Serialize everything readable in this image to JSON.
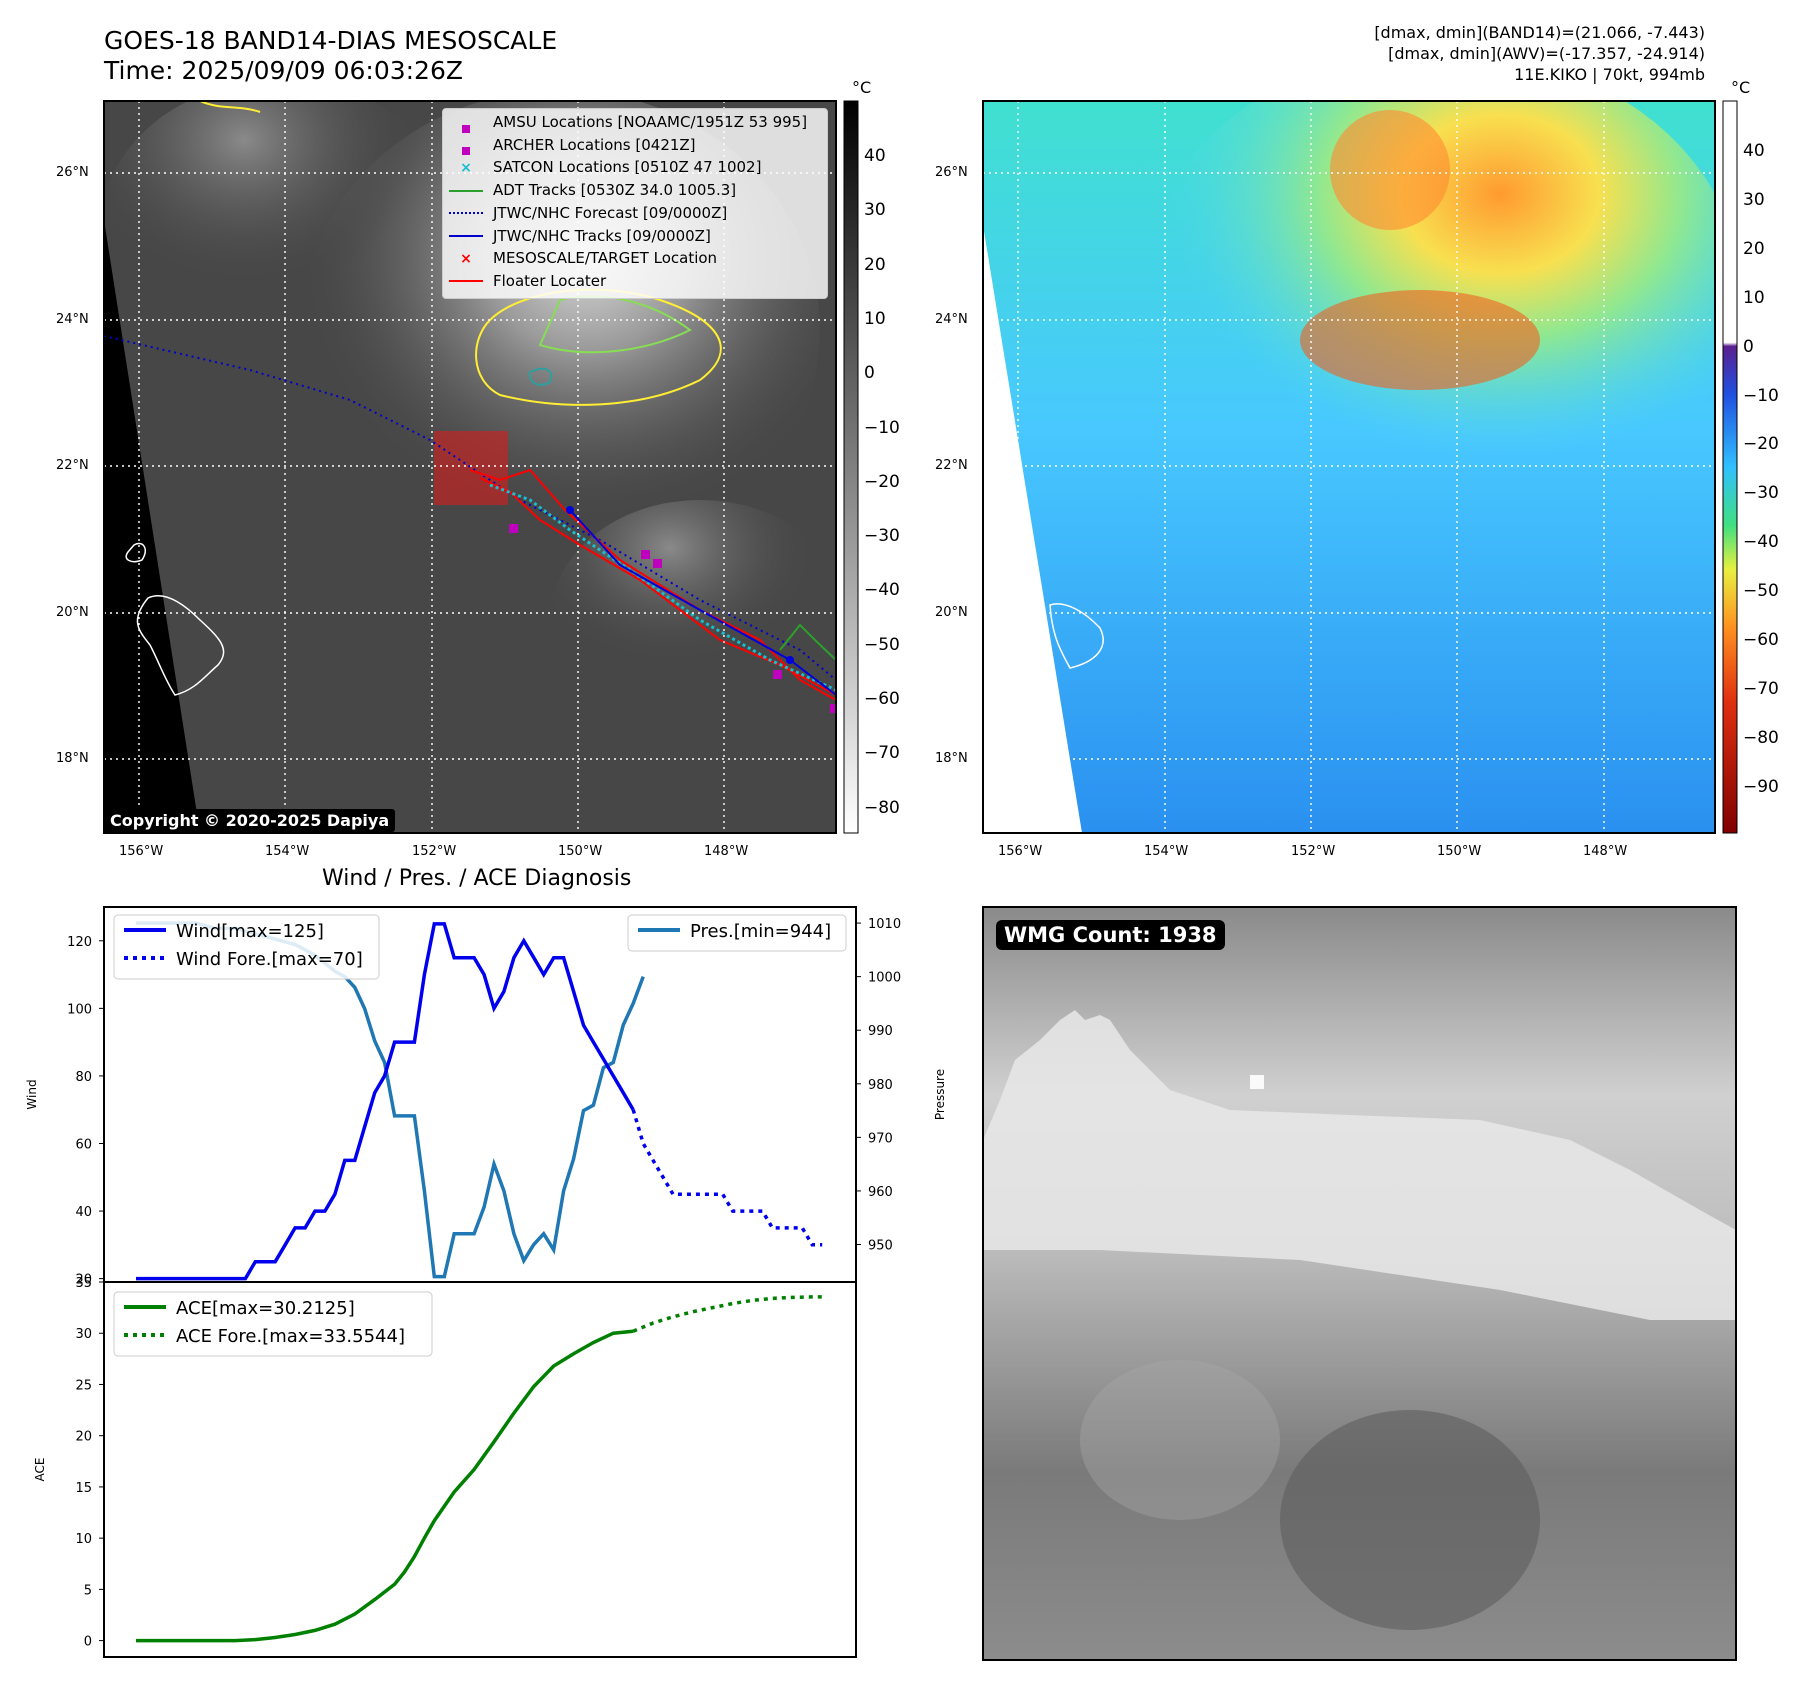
{
  "header": {
    "title_line1": "GOES-18 BAND14-DIAS MESOSCALE",
    "title_line2": "Time: 2025/09/09 06:03:26Z",
    "info_line1": "[dmax, dmin](BAND14)=(21.066, -7.443)",
    "info_line2": "[dmax, dmin](AWV)=(-17.357, -24.914)",
    "info_line3": "11E.KIKO | 70kt, 994mb"
  },
  "colors": {
    "wind": "#0000ee",
    "pressure": "#1f77b4",
    "ace": "#008000",
    "forecast_track": "#0000cc",
    "floater": "#ff0000",
    "adt": "#2ca02c",
    "satcon": "#17becf",
    "amsu": "#bf00bf",
    "cloud_contour": "#ffee33"
  },
  "map_ir": {
    "colorbar_unit": "°C",
    "colorbar_ticks": [
      "40",
      "30",
      "20",
      "10",
      "0",
      "−10",
      "−20",
      "−30",
      "−40",
      "−50",
      "−60",
      "−70",
      "−80"
    ],
    "lat_labels": [
      "26°N",
      "24°N",
      "22°N",
      "20°N",
      "18°N"
    ],
    "lon_labels": [
      "156°W",
      "154°W",
      "152°W",
      "150°W",
      "148°W"
    ],
    "copyright": "Copyright © 2020-2025 Dapiya",
    "legend": [
      {
        "label": "AMSU Locations [NOAAMC/1951Z 53 995]",
        "marker": "square",
        "color": "#bf00bf"
      },
      {
        "label": "ARCHER Locations [0421Z]",
        "marker": "square",
        "color": "#bf00bf"
      },
      {
        "label": "SATCON Locations [0510Z 47 1002]",
        "marker": "x",
        "color": "#17becf"
      },
      {
        "label": "ADT Tracks [0530Z 34.0 1005.3]",
        "marker": "line",
        "color": "#2ca02c"
      },
      {
        "label": "JTWC/NHC Forecast [09/0000Z]",
        "marker": "dotted",
        "color": "#0000cc"
      },
      {
        "label": "JTWC/NHC Tracks [09/0000Z]",
        "marker": "line-dot",
        "color": "#0000cc"
      },
      {
        "label": "MESOSCALE/TARGET Location",
        "marker": "x",
        "color": "#ff0000"
      },
      {
        "label": "Floater Locater",
        "marker": "line",
        "color": "#ff0000"
      }
    ]
  },
  "map_wv": {
    "colorbar_unit": "°C",
    "colorbar_ticks": [
      "40",
      "30",
      "20",
      "10",
      "0",
      "−10",
      "−20",
      "−30",
      "−40",
      "−50",
      "−60",
      "−70",
      "−80",
      "−90"
    ],
    "lat_labels": [
      "26°N",
      "24°N",
      "22°N",
      "20°N",
      "18°N"
    ],
    "lon_labels": [
      "156°W",
      "154°W",
      "152°W",
      "150°W",
      "148°W"
    ]
  },
  "zoom_panel": {
    "badge": "WMG Count: 1938"
  },
  "chart_data": [
    {
      "type": "line",
      "title": "Wind / Pres. / ACE Diagnosis",
      "ylabel": "Wind",
      "y2label": "Pressure",
      "ylim": [
        19,
        130
      ],
      "y2lim": [
        943,
        1013
      ],
      "yticks": [
        "20",
        "40",
        "60",
        "80",
        "100",
        "120"
      ],
      "y2ticks": [
        "950",
        "960",
        "970",
        "980",
        "990",
        "1000",
        "1010"
      ],
      "legend_left": [
        "Wind[max=125]",
        "Wind Fore.[max=70]"
      ],
      "legend_right": [
        "Pres.[min=944]"
      ],
      "series": [
        {
          "name": "Wind[max=125]",
          "axis": "left",
          "style": "solid",
          "x": [
            0,
            1,
            2,
            3,
            4,
            5,
            6,
            7,
            8,
            9,
            10,
            11,
            12,
            13,
            14,
            15,
            16,
            17,
            18,
            19,
            20,
            21,
            22,
            23,
            24,
            25,
            26,
            27,
            28,
            29,
            30,
            31,
            32,
            33,
            34,
            35,
            36,
            37,
            38,
            39,
            40,
            41,
            42,
            43,
            44,
            45,
            46,
            47,
            48,
            49,
            50,
            51,
            52,
            53,
            54,
            55,
            56
          ],
          "values": [
            20,
            20,
            20,
            20,
            20,
            20,
            20,
            20,
            20,
            20,
            20,
            20,
            25,
            25,
            25,
            30,
            35,
            35,
            40,
            40,
            45,
            55,
            55,
            65,
            75,
            80,
            90,
            90,
            90,
            110,
            125,
            125,
            115,
            115,
            115,
            110,
            100,
            105,
            115,
            120,
            115,
            110,
            115,
            115,
            105,
            95,
            90,
            85,
            80,
            75,
            70,
            null,
            null,
            null,
            null,
            null,
            null
          ]
        },
        {
          "name": "Wind Fore.[max=70]",
          "axis": "left",
          "style": "dotted",
          "x": [
            50,
            51,
            52,
            53,
            54,
            55,
            56,
            57,
            58,
            59,
            60,
            61,
            62,
            63,
            64,
            65,
            66,
            67,
            68,
            69
          ],
          "values": [
            70,
            60,
            55,
            50,
            45,
            45,
            45,
            45,
            45,
            45,
            40,
            40,
            40,
            40,
            35,
            35,
            35,
            35,
            30,
            30
          ]
        },
        {
          "name": "Pres.[min=944]",
          "axis": "right",
          "style": "solid",
          "x": [
            0,
            2,
            4,
            6,
            8,
            10,
            12,
            14,
            16,
            18,
            20,
            21,
            22,
            23,
            24,
            25,
            26,
            27,
            28,
            29,
            30,
            31,
            32,
            33,
            34,
            35,
            36,
            37,
            38,
            39,
            40,
            41,
            42,
            43,
            44,
            45,
            46,
            47,
            48,
            49,
            50,
            51
          ],
          "values": [
            1010,
            1010,
            1010,
            1010,
            1009,
            1009,
            1008,
            1007,
            1006,
            1004,
            1001,
            1000,
            998,
            994,
            988,
            984,
            974,
            974,
            974,
            960,
            944,
            944,
            952,
            952,
            952,
            957,
            965,
            960,
            952,
            947,
            950,
            952,
            949,
            960,
            966,
            975,
            976,
            983,
            984,
            991,
            995,
            1000
          ]
        }
      ]
    },
    {
      "type": "line",
      "ylabel": "ACE",
      "ylim": [
        -1.6,
        35
      ],
      "yticks": [
        "0",
        "5",
        "10",
        "15",
        "20",
        "25",
        "30",
        "35"
      ],
      "legend": [
        "ACE[max=30.2125]",
        "ACE Fore.[max=33.5544]"
      ],
      "series": [
        {
          "name": "ACE[max=30.2125]",
          "style": "solid",
          "x": [
            0,
            5,
            10,
            12,
            14,
            16,
            18,
            20,
            22,
            24,
            26,
            27,
            28,
            29,
            30,
            32,
            34,
            36,
            38,
            40,
            42,
            44,
            46,
            48,
            50
          ],
          "values": [
            0,
            0,
            0,
            0.1,
            0.3,
            0.6,
            1.0,
            1.6,
            2.6,
            4.0,
            5.5,
            6.7,
            8.2,
            10.0,
            11.7,
            14.5,
            16.7,
            19.4,
            22.2,
            24.8,
            26.8,
            28.0,
            29.1,
            30.0,
            30.2
          ]
        },
        {
          "name": "ACE Fore.[max=33.5544]",
          "style": "dotted",
          "x": [
            50,
            52,
            54,
            56,
            58,
            60,
            62,
            64,
            66,
            68,
            69
          ],
          "values": [
            30.2,
            31.0,
            31.6,
            32.1,
            32.5,
            32.9,
            33.2,
            33.4,
            33.5,
            33.55,
            33.55
          ]
        }
      ]
    }
  ]
}
